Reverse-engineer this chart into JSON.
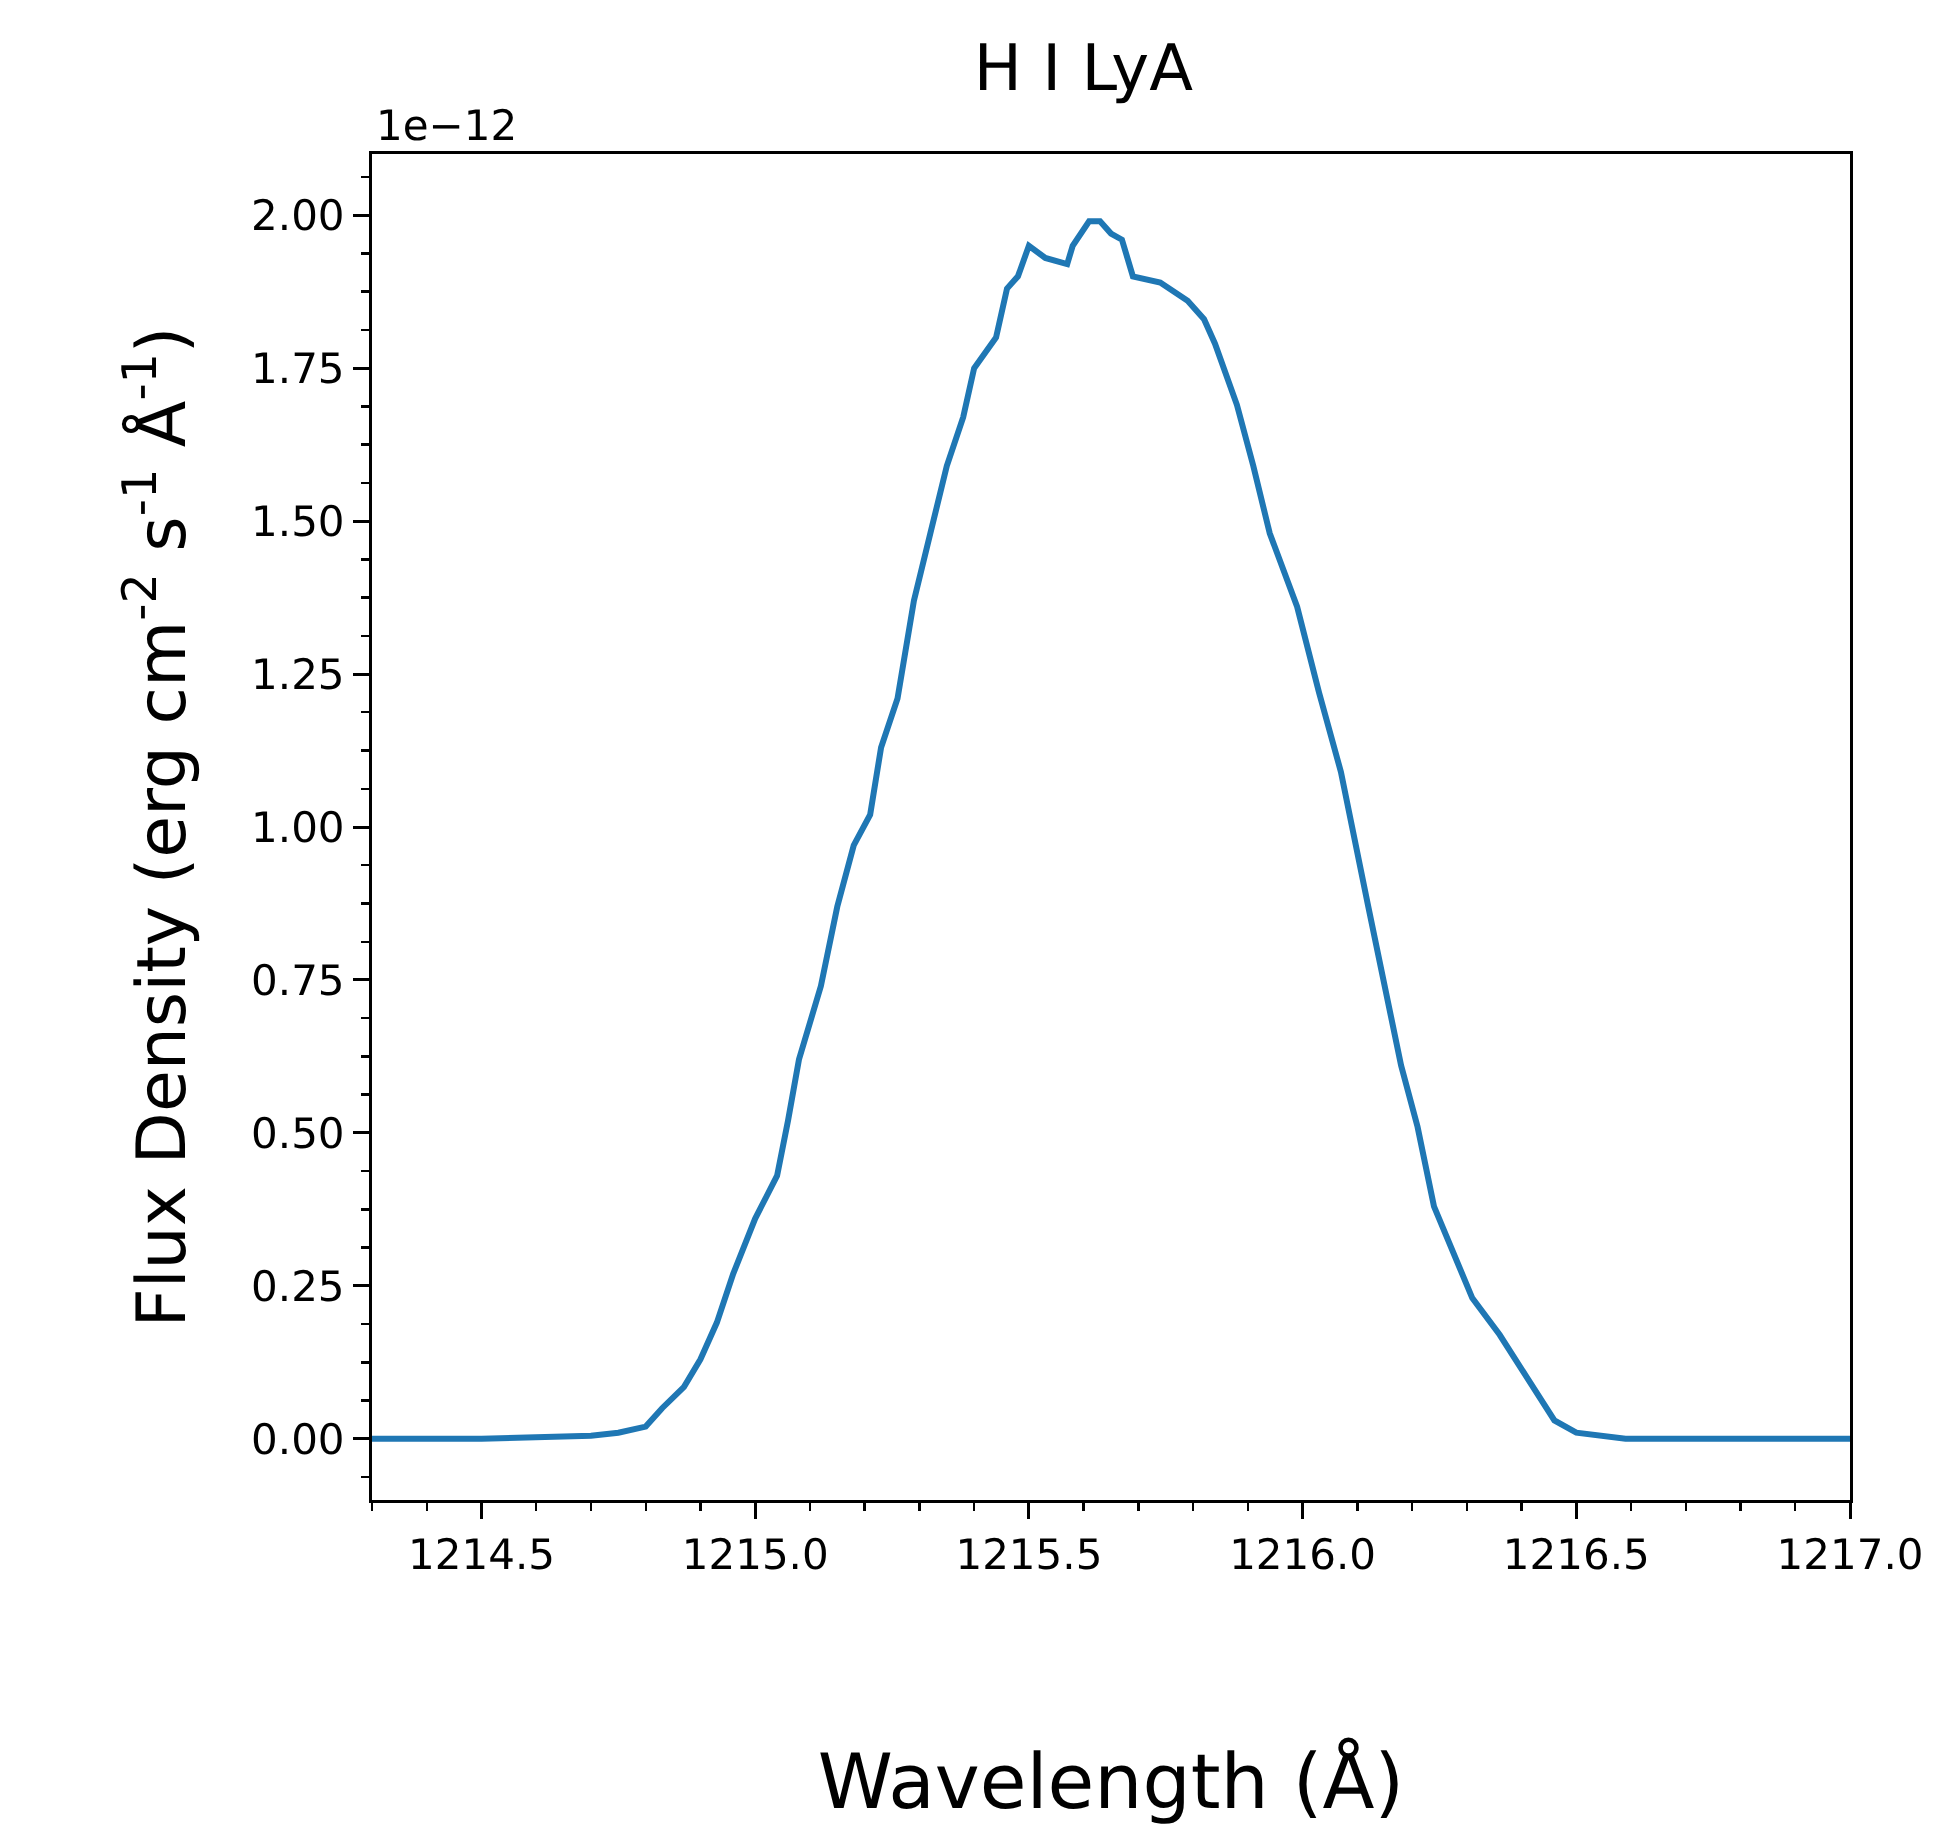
{
  "chart_data": {
    "type": "line",
    "title": "H I LyA",
    "xlabel": "Wavelength (Å)",
    "ylabel": "Flux Density (erg cm$^{-2}$ s$^{-1}$ Å$^{-1}$)",
    "annotations": [
      "1e−12"
    ],
    "x": [
      1214.3,
      1214.5,
      1214.7,
      1214.75,
      1214.8,
      1214.83,
      1214.87,
      1214.9,
      1214.93,
      1214.96,
      1215.0,
      1215.04,
      1215.06,
      1215.08,
      1215.12,
      1215.15,
      1215.18,
      1215.21,
      1215.23,
      1215.26,
      1215.29,
      1215.32,
      1215.35,
      1215.38,
      1215.4,
      1215.44,
      1215.46,
      1215.48,
      1215.5,
      1215.53,
      1215.57,
      1215.58,
      1215.61,
      1215.63,
      1215.65,
      1215.67,
      1215.69,
      1215.74,
      1215.79,
      1215.82,
      1215.84,
      1215.88,
      1215.91,
      1215.94,
      1215.99,
      1216.03,
      1216.07,
      1216.12,
      1216.18,
      1216.21,
      1216.24,
      1216.31,
      1216.36,
      1216.41,
      1216.46,
      1216.5,
      1216.59,
      1216.8,
      1217.0
    ],
    "series": [
      {
        "color": "#1f77b4",
        "values": [
          0,
          0,
          0.005,
          0.01,
          0.02,
          0.05,
          0.085,
          0.13,
          0.19,
          0.27,
          0.36,
          0.43,
          0.52,
          0.62,
          0.74,
          0.87,
          0.97,
          1.02,
          1.13,
          1.21,
          1.37,
          1.48,
          1.59,
          1.67,
          1.75,
          1.8,
          1.88,
          1.9,
          1.95,
          1.93,
          1.92,
          1.95,
          1.99,
          1.99,
          1.97,
          1.96,
          1.9,
          1.89,
          1.86,
          1.83,
          1.79,
          1.69,
          1.59,
          1.48,
          1.36,
          1.22,
          1.09,
          0.87,
          0.61,
          0.51,
          0.38,
          0.23,
          0.17,
          0.1,
          0.03,
          0.01,
          0,
          0,
          0
        ]
      }
    ],
    "xlim": [
      1214.3,
      1217.0
    ],
    "ylim": [
      -0.1,
      2.1
    ],
    "xticks": [
      {
        "value": 1214.3,
        "label": null
      },
      {
        "value": 1214.4,
        "label": null
      },
      {
        "value": 1214.5,
        "label": "1214.5"
      },
      {
        "value": 1214.6,
        "label": null
      },
      {
        "value": 1214.7,
        "label": null
      },
      {
        "value": 1214.8,
        "label": null
      },
      {
        "value": 1214.9,
        "label": null
      },
      {
        "value": 1215.0,
        "label": "1215.0"
      },
      {
        "value": 1215.1,
        "label": null
      },
      {
        "value": 1215.2,
        "label": null
      },
      {
        "value": 1215.3,
        "label": null
      },
      {
        "value": 1215.4,
        "label": null
      },
      {
        "value": 1215.5,
        "label": "1215.5"
      },
      {
        "value": 1215.6,
        "label": null
      },
      {
        "value": 1215.7,
        "label": null
      },
      {
        "value": 1215.8,
        "label": null
      },
      {
        "value": 1215.9,
        "label": null
      },
      {
        "value": 1216.0,
        "label": "1216.0"
      },
      {
        "value": 1216.1,
        "label": null
      },
      {
        "value": 1216.2,
        "label": null
      },
      {
        "value": 1216.3,
        "label": null
      },
      {
        "value": 1216.4,
        "label": null
      },
      {
        "value": 1216.5,
        "label": "1216.5"
      },
      {
        "value": 1216.6,
        "label": null
      },
      {
        "value": 1216.7,
        "label": null
      },
      {
        "value": 1216.8,
        "label": null
      },
      {
        "value": 1216.9,
        "label": null
      },
      {
        "value": 1217.0,
        "label": "1217.0"
      }
    ],
    "yticks": [
      {
        "value": -0.0625,
        "label": null
      },
      {
        "value": 0,
        "label": "0.00"
      },
      {
        "value": 0.0625,
        "label": null
      },
      {
        "value": 0.125,
        "label": null
      },
      {
        "value": 0.1875,
        "label": null
      },
      {
        "value": 0.25,
        "label": "0.25"
      },
      {
        "value": 0.3125,
        "label": null
      },
      {
        "value": 0.375,
        "label": null
      },
      {
        "value": 0.4375,
        "label": null
      },
      {
        "value": 0.5,
        "label": "0.50"
      },
      {
        "value": 0.5625,
        "label": null
      },
      {
        "value": 0.625,
        "label": null
      },
      {
        "value": 0.6875,
        "label": null
      },
      {
        "value": 0.75,
        "label": "0.75"
      },
      {
        "value": 0.8125,
        "label": null
      },
      {
        "value": 0.875,
        "label": null
      },
      {
        "value": 0.9375,
        "label": null
      },
      {
        "value": 1,
        "label": "1.00"
      },
      {
        "value": 1.0625,
        "label": null
      },
      {
        "value": 1.125,
        "label": null
      },
      {
        "value": 1.1875,
        "label": null
      },
      {
        "value": 1.25,
        "label": "1.25"
      },
      {
        "value": 1.3125,
        "label": null
      },
      {
        "value": 1.375,
        "label": null
      },
      {
        "value": 1.4375,
        "label": null
      },
      {
        "value": 1.5,
        "label": "1.50"
      },
      {
        "value": 1.5625,
        "label": null
      },
      {
        "value": 1.625,
        "label": null
      },
      {
        "value": 1.6875,
        "label": null
      },
      {
        "value": 1.75,
        "label": "1.75"
      },
      {
        "value": 1.8125,
        "label": null
      },
      {
        "value": 1.875,
        "label": null
      },
      {
        "value": 1.9375,
        "label": null
      },
      {
        "value": 2,
        "label": "2.00"
      },
      {
        "value": 2.0625,
        "label": null
      }
    ],
    "grid": false,
    "marker": "none",
    "line_style": "solid"
  }
}
